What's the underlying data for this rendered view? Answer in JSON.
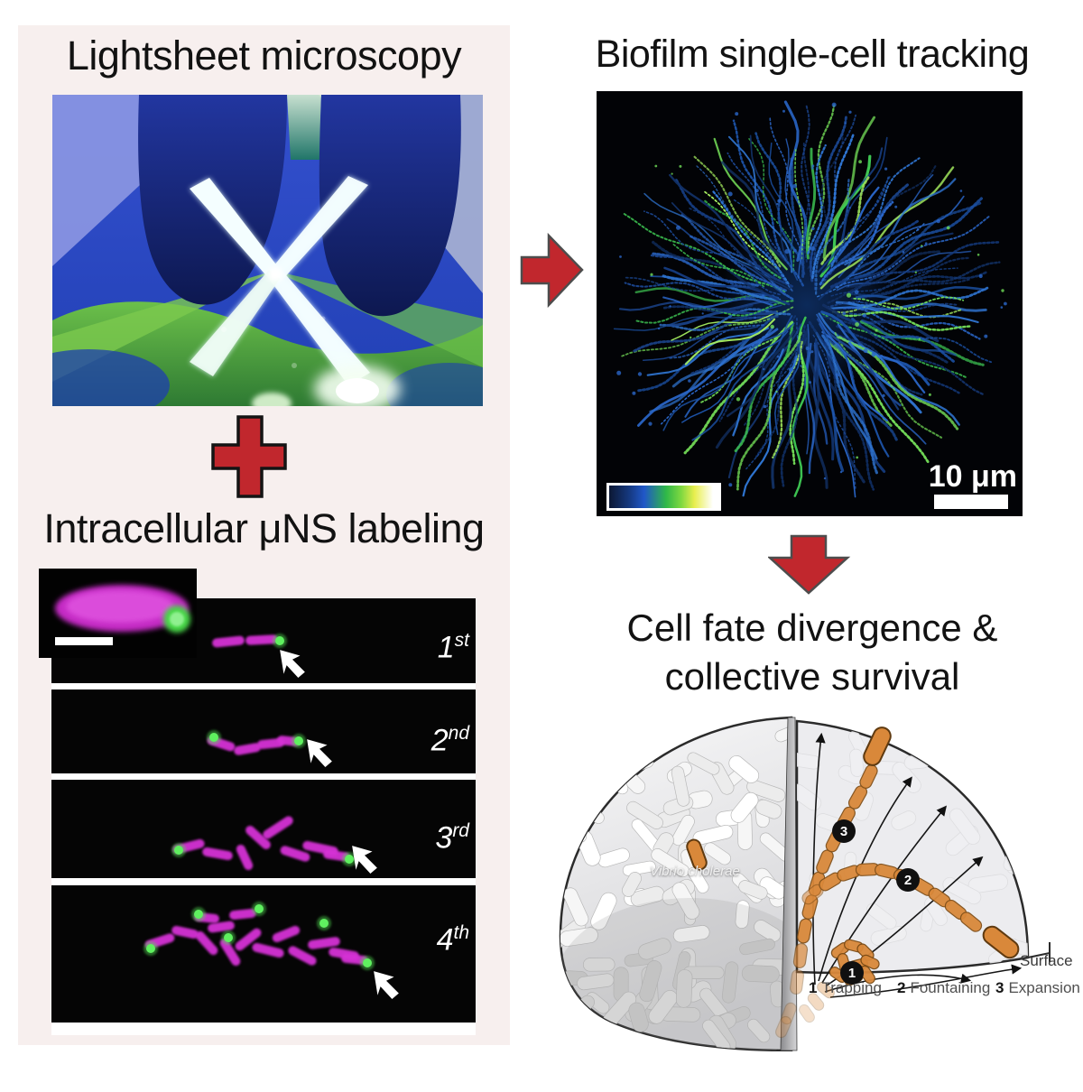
{
  "figure": {
    "lightsheet": {
      "title": "Lightsheet microscopy"
    },
    "tracking": {
      "title": "Biofilm single-cell tracking",
      "scale_label": "10 μm"
    },
    "labeling": {
      "title": "Intracellular μNS labeling",
      "frames": [
        {
          "num": "1",
          "suffix": "st"
        },
        {
          "num": "2",
          "suffix": "nd"
        },
        {
          "num": "3",
          "suffix": "rd"
        },
        {
          "num": "4",
          "suffix": "th"
        }
      ]
    },
    "fate": {
      "title_line1": "Cell fate divergence &",
      "title_line2": "collective survival",
      "species": "Vibrio cholerae",
      "surface_label": "Surface",
      "legend": [
        {
          "num": "1",
          "label": "Trapping"
        },
        {
          "num": "2",
          "label": "Fountaining"
        },
        {
          "num": "3",
          "label": "Expansion"
        }
      ]
    },
    "colors": {
      "accent_red": "#c1272d",
      "panel_pink": "#f7efee",
      "cell_magenta": "#d532d5",
      "label_green": "#52e052",
      "track_blue": "#2a66c8",
      "track_green": "#74de58",
      "lineage_orange": "#d9883a"
    }
  }
}
